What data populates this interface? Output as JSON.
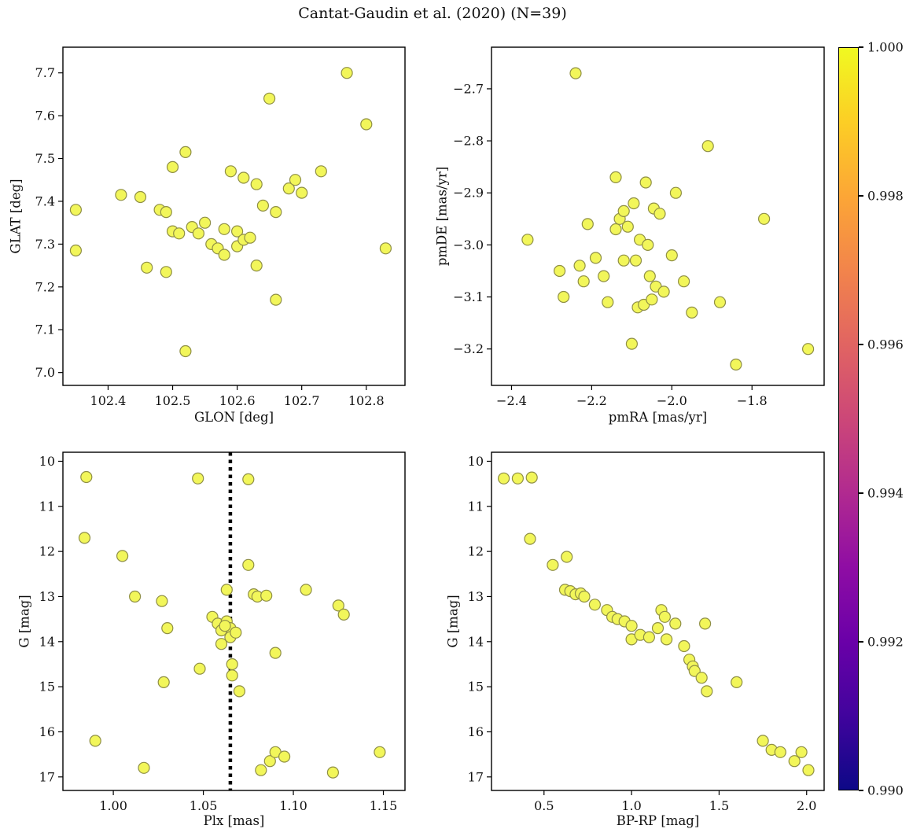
{
  "title": "Cantat-Gaudin et al. (2020) (N=39)",
  "style": {
    "marker_fill": "#f2f65a",
    "marker_edge": "#8f8f45",
    "marker_radius": 7,
    "vline_color": "#000000",
    "axis_color": "#000000",
    "background": "#ffffff"
  },
  "chart_data": [
    {
      "id": "glon-glat",
      "type": "scatter",
      "xlabel": "GLON [deg]",
      "ylabel": "GLAT [deg]",
      "xlim": [
        102.33,
        102.86
      ],
      "ylim": [
        6.97,
        7.76
      ],
      "xticks": [
        102.4,
        102.5,
        102.6,
        102.7,
        102.8
      ],
      "xtick_labels": [
        "102.4",
        "102.5",
        "102.6",
        "102.7",
        "102.8"
      ],
      "yticks": [
        7.0,
        7.1,
        7.2,
        7.3,
        7.4,
        7.5,
        7.6,
        7.7
      ],
      "ytick_labels": [
        "7.0",
        "7.1",
        "7.2",
        "7.3",
        "7.4",
        "7.5",
        "7.6",
        "7.7"
      ],
      "points": [
        [
          102.35,
          7.38
        ],
        [
          102.35,
          7.285
        ],
        [
          102.42,
          7.415
        ],
        [
          102.45,
          7.41
        ],
        [
          102.46,
          7.245
        ],
        [
          102.48,
          7.38
        ],
        [
          102.49,
          7.375
        ],
        [
          102.49,
          7.235
        ],
        [
          102.5,
          7.48
        ],
        [
          102.5,
          7.33
        ],
        [
          102.51,
          7.325
        ],
        [
          102.52,
          7.515
        ],
        [
          102.52,
          7.05
        ],
        [
          102.53,
          7.34
        ],
        [
          102.54,
          7.325
        ],
        [
          102.55,
          7.35
        ],
        [
          102.56,
          7.3
        ],
        [
          102.57,
          7.29
        ],
        [
          102.58,
          7.275
        ],
        [
          102.58,
          7.335
        ],
        [
          102.59,
          7.47
        ],
        [
          102.6,
          7.33
        ],
        [
          102.6,
          7.295
        ],
        [
          102.61,
          7.455
        ],
        [
          102.61,
          7.31
        ],
        [
          102.62,
          7.315
        ],
        [
          102.63,
          7.44
        ],
        [
          102.63,
          7.25
        ],
        [
          102.64,
          7.39
        ],
        [
          102.65,
          7.64
        ],
        [
          102.66,
          7.375
        ],
        [
          102.66,
          7.17
        ],
        [
          102.68,
          7.43
        ],
        [
          102.69,
          7.45
        ],
        [
          102.7,
          7.42
        ],
        [
          102.73,
          7.47
        ],
        [
          102.77,
          7.7
        ],
        [
          102.8,
          7.58
        ],
        [
          102.83,
          7.29
        ]
      ]
    },
    {
      "id": "pmra-pmde",
      "type": "scatter",
      "xlabel": "pmRA [mas/yr]",
      "ylabel": "pmDE [mas/yr]",
      "xlim": [
        -2.45,
        -1.62
      ],
      "ylim": [
        -3.27,
        -2.62
      ],
      "xticks": [
        -2.4,
        -2.2,
        -2.0,
        -1.8
      ],
      "xtick_labels": [
        "−2.4",
        "−2.2",
        "−2.0",
        "−1.8"
      ],
      "yticks": [
        -2.7,
        -2.8,
        -2.9,
        -3.0,
        -3.1,
        -3.2
      ],
      "ytick_labels": [
        "−2.7",
        "−2.8",
        "−2.9",
        "−3.0",
        "−3.1",
        "−3.2"
      ],
      "points": [
        [
          -2.36,
          -2.99
        ],
        [
          -2.28,
          -3.05
        ],
        [
          -2.27,
          -3.1
        ],
        [
          -2.24,
          -2.67
        ],
        [
          -2.23,
          -3.04
        ],
        [
          -2.22,
          -3.07
        ],
        [
          -2.21,
          -2.96
        ],
        [
          -2.19,
          -3.025
        ],
        [
          -2.17,
          -3.06
        ],
        [
          -2.16,
          -3.11
        ],
        [
          -2.14,
          -2.87
        ],
        [
          -2.14,
          -2.97
        ],
        [
          -2.13,
          -2.95
        ],
        [
          -2.12,
          -2.935
        ],
        [
          -2.12,
          -3.03
        ],
        [
          -2.11,
          -2.965
        ],
        [
          -2.1,
          -3.19
        ],
        [
          -2.095,
          -2.92
        ],
        [
          -2.09,
          -3.03
        ],
        [
          -2.085,
          -3.12
        ],
        [
          -2.08,
          -2.99
        ],
        [
          -2.07,
          -3.115
        ],
        [
          -2.065,
          -2.88
        ],
        [
          -2.06,
          -3.0
        ],
        [
          -2.055,
          -3.06
        ],
        [
          -2.05,
          -3.105
        ],
        [
          -2.045,
          -2.93
        ],
        [
          -2.04,
          -3.08
        ],
        [
          -2.03,
          -2.94
        ],
        [
          -2.02,
          -3.09
        ],
        [
          -2.0,
          -3.02
        ],
        [
          -1.99,
          -2.9
        ],
        [
          -1.97,
          -3.07
        ],
        [
          -1.95,
          -3.13
        ],
        [
          -1.91,
          -2.81
        ],
        [
          -1.88,
          -3.11
        ],
        [
          -1.84,
          -3.23
        ],
        [
          -1.77,
          -2.95
        ],
        [
          -1.66,
          -3.2
        ]
      ]
    },
    {
      "id": "plx-g",
      "type": "scatter",
      "xlabel": "Plx [mas]",
      "ylabel": "G [mag]",
      "xlim": [
        0.972,
        1.162
      ],
      "ylim": [
        17.3,
        9.8
      ],
      "vline": 1.065,
      "xticks": [
        1.0,
        1.05,
        1.1,
        1.15
      ],
      "xtick_labels": [
        "1.00",
        "1.05",
        "1.10",
        "1.15"
      ],
      "yticks": [
        10,
        11,
        12,
        13,
        14,
        15,
        16,
        17
      ],
      "ytick_labels": [
        "10",
        "11",
        "12",
        "13",
        "14",
        "15",
        "16",
        "17"
      ],
      "points": [
        [
          0.985,
          10.35
        ],
        [
          0.984,
          11.7
        ],
        [
          0.99,
          16.2
        ],
        [
          1.005,
          12.1
        ],
        [
          1.012,
          13.0
        ],
        [
          1.017,
          16.8
        ],
        [
          1.027,
          13.1
        ],
        [
          1.03,
          13.7
        ],
        [
          1.028,
          14.9
        ],
        [
          1.047,
          10.38
        ],
        [
          1.048,
          14.6
        ],
        [
          1.055,
          13.45
        ],
        [
          1.058,
          13.6
        ],
        [
          1.06,
          13.75
        ],
        [
          1.06,
          14.05
        ],
        [
          1.063,
          12.85
        ],
        [
          1.063,
          13.55
        ],
        [
          1.065,
          13.7
        ],
        [
          1.065,
          13.9
        ],
        [
          1.066,
          14.5
        ],
        [
          1.066,
          14.75
        ],
        [
          1.068,
          13.8
        ],
        [
          1.07,
          15.1
        ],
        [
          1.075,
          10.4
        ],
        [
          1.075,
          12.3
        ],
        [
          1.078,
          12.95
        ],
        [
          1.08,
          13.0
        ],
        [
          1.082,
          16.85
        ],
        [
          1.085,
          12.98
        ],
        [
          1.087,
          16.65
        ],
        [
          1.09,
          14.25
        ],
        [
          1.09,
          16.45
        ],
        [
          1.095,
          16.55
        ],
        [
          1.107,
          12.85
        ],
        [
          1.122,
          16.9
        ],
        [
          1.125,
          13.2
        ],
        [
          1.128,
          13.4
        ],
        [
          1.148,
          16.45
        ],
        [
          1.062,
          13.65
        ]
      ]
    },
    {
      "id": "bprp-g",
      "type": "scatter",
      "xlabel": "BP-RP [mag]",
      "ylabel": "G [mag]",
      "xlim": [
        0.2,
        2.1
      ],
      "ylim": [
        17.3,
        9.8
      ],
      "xticks": [
        0.5,
        1.0,
        1.5,
        2.0
      ],
      "xtick_labels": [
        "0.5",
        "1.0",
        "1.5",
        "2.0"
      ],
      "yticks": [
        10,
        11,
        12,
        13,
        14,
        15,
        16,
        17
      ],
      "ytick_labels": [
        "10",
        "11",
        "12",
        "13",
        "14",
        "15",
        "16",
        "17"
      ],
      "points": [
        [
          0.27,
          10.38
        ],
        [
          0.35,
          10.38
        ],
        [
          0.43,
          10.36
        ],
        [
          0.42,
          11.72
        ],
        [
          0.55,
          12.3
        ],
        [
          0.63,
          12.12
        ],
        [
          0.62,
          12.85
        ],
        [
          0.65,
          12.88
        ],
        [
          0.68,
          12.95
        ],
        [
          0.71,
          12.93
        ],
        [
          0.73,
          13.0
        ],
        [
          0.79,
          13.18
        ],
        [
          0.86,
          13.3
        ],
        [
          0.89,
          13.45
        ],
        [
          0.92,
          13.5
        ],
        [
          0.96,
          13.55
        ],
        [
          1.0,
          13.65
        ],
        [
          1.0,
          13.95
        ],
        [
          1.05,
          13.85
        ],
        [
          1.1,
          13.9
        ],
        [
          1.15,
          13.7
        ],
        [
          1.17,
          13.3
        ],
        [
          1.19,
          13.45
        ],
        [
          1.2,
          13.95
        ],
        [
          1.25,
          13.6
        ],
        [
          1.3,
          14.1
        ],
        [
          1.33,
          14.4
        ],
        [
          1.35,
          14.55
        ],
        [
          1.36,
          14.65
        ],
        [
          1.4,
          14.8
        ],
        [
          1.42,
          13.6
        ],
        [
          1.43,
          15.1
        ],
        [
          1.6,
          14.9
        ],
        [
          1.75,
          16.2
        ],
        [
          1.8,
          16.4
        ],
        [
          1.85,
          16.45
        ],
        [
          1.93,
          16.65
        ],
        [
          1.97,
          16.45
        ],
        [
          2.01,
          16.85
        ]
      ]
    }
  ],
  "colorbar": {
    "vmin": 0.99,
    "vmax": 1.0,
    "values": [
      1.0,
      0.998,
      0.996,
      0.994,
      0.992,
      0.99
    ],
    "tick_labels": [
      "1.000",
      "0.998",
      "0.996",
      "0.994",
      "0.992",
      "0.990"
    ],
    "colormap": "plasma",
    "stops": [
      "#0d0887",
      "#41049d",
      "#6a00a8",
      "#8f0da4",
      "#b12a90",
      "#cc4778",
      "#e16462",
      "#f2844b",
      "#fca636",
      "#fcce25",
      "#f0f921"
    ]
  }
}
